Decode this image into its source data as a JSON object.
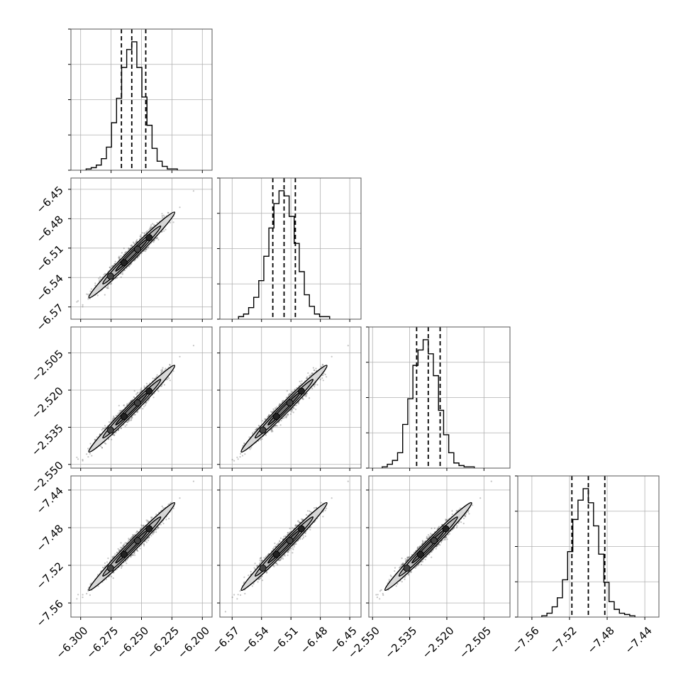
{
  "chart_data": {
    "type": "scatter",
    "subtype": "corner-plot",
    "params": [
      {
        "ticks": [
          "−6.300",
          "−6.275",
          "−6.250",
          "−6.225",
          "−6.200"
        ],
        "tick_values": [
          -6.3,
          -6.275,
          -6.25,
          -6.225,
          -6.2
        ],
        "range": [
          -6.308,
          -6.192
        ],
        "mean": -6.258,
        "sd": 0.0125,
        "quantiles": [
          -6.2665,
          -6.258,
          -6.2465
        ],
        "hist": [
          1,
          2,
          4,
          9,
          18,
          37,
          56,
          80,
          94,
          100,
          80,
          57,
          35,
          17,
          7,
          3,
          1,
          1
        ]
      },
      {
        "ticks": [
          "−6.57",
          "−6.54",
          "−6.51",
          "−6.48",
          "−6.45"
        ],
        "tick_values": [
          -6.57,
          -6.54,
          -6.51,
          -6.48,
          -6.45
        ],
        "range": [
          -6.5825,
          -6.4385
        ],
        "mean": -6.517,
        "sd": 0.0155,
        "quantiles": [
          -6.5285,
          -6.517,
          -6.5055
        ],
        "hist": [
          2,
          4,
          9,
          17,
          30,
          49,
          71,
          90,
          100,
          96,
          80,
          59,
          37,
          19,
          10,
          4,
          2,
          2
        ]
      },
      {
        "ticks": [
          "−2.550",
          "−2.535",
          "−2.520",
          "−2.505"
        ],
        "tick_values": [
          -2.55,
          -2.535,
          -2.52,
          -2.505
        ],
        "range": [
          -2.5515,
          -2.4945
        ],
        "mean": -2.5275,
        "sd": 0.0062,
        "quantiles": [
          -2.5322,
          -2.5275,
          -2.5227
        ],
        "hist": [
          1,
          3,
          6,
          12,
          34,
          54,
          80,
          92,
          100,
          89,
          72,
          45,
          26,
          12,
          4,
          2,
          1,
          1
        ]
      },
      {
        "ticks": [
          "−7.56",
          "−7.52",
          "−7.48",
          "−7.44"
        ],
        "tick_values": [
          -7.56,
          -7.52,
          -7.48,
          -7.44
        ],
        "range": [
          -7.575,
          -7.425
        ],
        "mean": -7.5,
        "sd": 0.0165,
        "quantiles": [
          -7.5175,
          -7.5,
          -7.4825
        ],
        "hist": [
          1,
          3,
          8,
          15,
          29,
          51,
          76,
          91,
          100,
          89,
          71,
          49,
          27,
          12,
          6,
          3,
          2,
          1
        ]
      }
    ],
    "hist_ylim": [
      0,
      100
    ],
    "grid": true,
    "quantile_lines": "dashed",
    "correlation": 0.985,
    "scatter_samples": 2600,
    "colors": {
      "line": "#000000",
      "grid": "#b0b0b0",
      "points": "#555555",
      "contour_fill": "#d8d8d8"
    }
  }
}
